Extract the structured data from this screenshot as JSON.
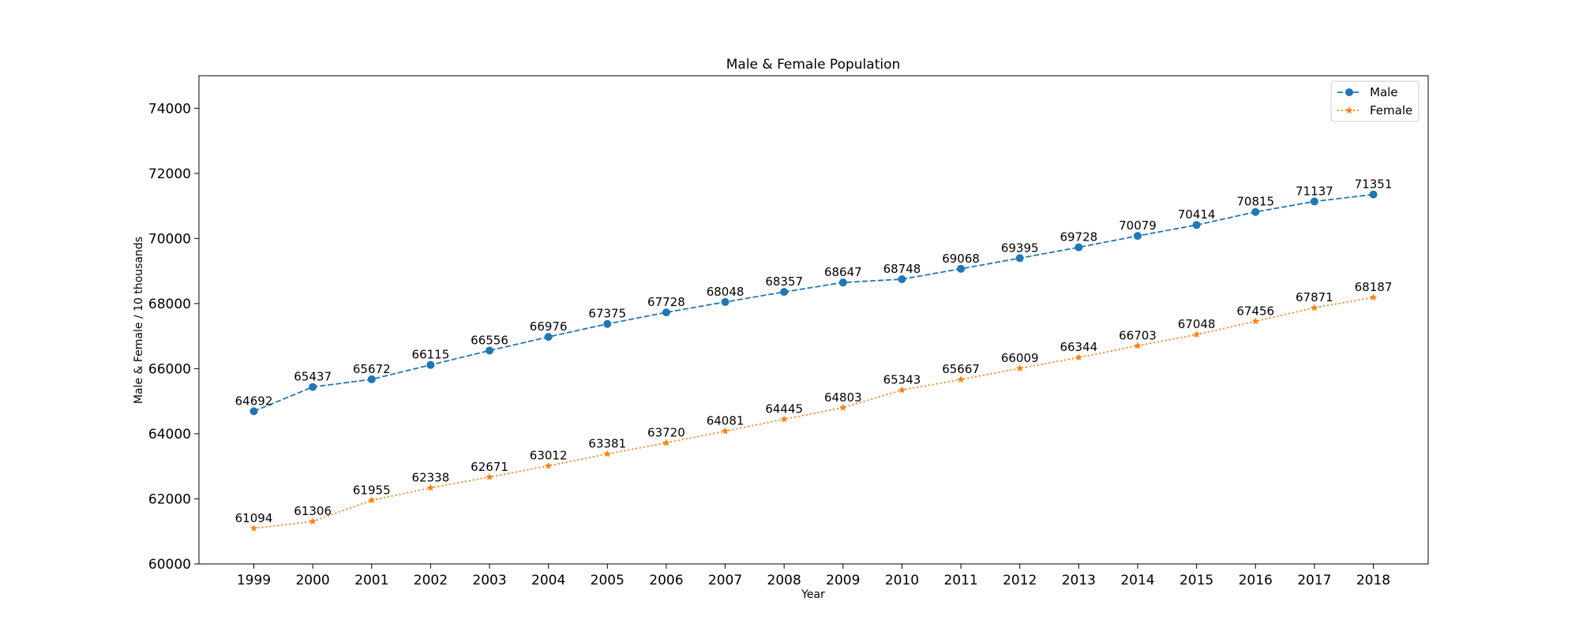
{
  "chart_data": {
    "type": "line",
    "title": "Male & Female Population",
    "xlabel": "Year",
    "ylabel": "Male & Female / 10 thousands",
    "x": [
      1999,
      2000,
      2001,
      2002,
      2003,
      2004,
      2005,
      2006,
      2007,
      2008,
      2009,
      2010,
      2011,
      2012,
      2013,
      2014,
      2015,
      2016,
      2017,
      2018
    ],
    "ylim": [
      60000,
      75000
    ],
    "yticks": [
      60000,
      62000,
      64000,
      66000,
      68000,
      70000,
      72000,
      74000
    ],
    "grid": false,
    "legend_position": "top-right",
    "series": [
      {
        "name": "Male",
        "color": "#1f77b4",
        "line_style": "dashed",
        "marker": "circle",
        "values": [
          64692,
          65437,
          65672,
          66115,
          66556,
          66976,
          67375,
          67728,
          68048,
          68357,
          68647,
          68748,
          69068,
          69395,
          69728,
          70079,
          70414,
          70815,
          71137,
          71351
        ]
      },
      {
        "name": "Female",
        "color": "#ff7f0e",
        "line_style": "dotted",
        "marker": "star",
        "values": [
          61094,
          61306,
          61955,
          62338,
          62671,
          63012,
          63381,
          63720,
          64081,
          64445,
          64803,
          65343,
          65667,
          66009,
          66344,
          66703,
          67048,
          67456,
          67871,
          68187
        ]
      }
    ]
  }
}
